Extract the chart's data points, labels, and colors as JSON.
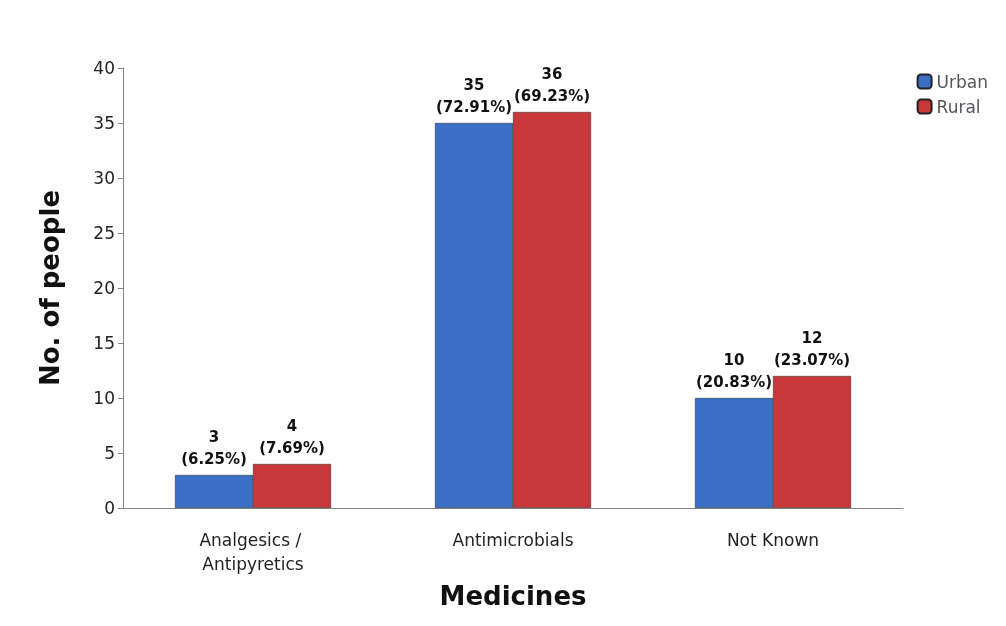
{
  "chart_data": {
    "type": "bar",
    "xlabel": "Medicines",
    "ylabel": "No. of people",
    "categories": [
      "Analgesics / Antipyretics",
      "Antimicrobials",
      "Not Known"
    ],
    "series": [
      {
        "name": "Urban",
        "color": "#3b6fc6",
        "values": [
          3,
          35,
          10
        ],
        "value_labels": [
          "3\n(6.25%)",
          "35\n(72.91%)",
          "10\n(20.83%)"
        ]
      },
      {
        "name": "Rural",
        "color": "#c8383a",
        "values": [
          4,
          36,
          12
        ],
        "value_labels": [
          "4\n(7.69%)",
          "36\n(69.23%)",
          "12\n(23.07%)"
        ]
      }
    ],
    "ylim": [
      0,
      40
    ],
    "yticks": [
      0,
      5,
      10,
      15,
      20,
      25,
      30,
      35,
      40
    ],
    "grid": false,
    "legend": "top right"
  }
}
